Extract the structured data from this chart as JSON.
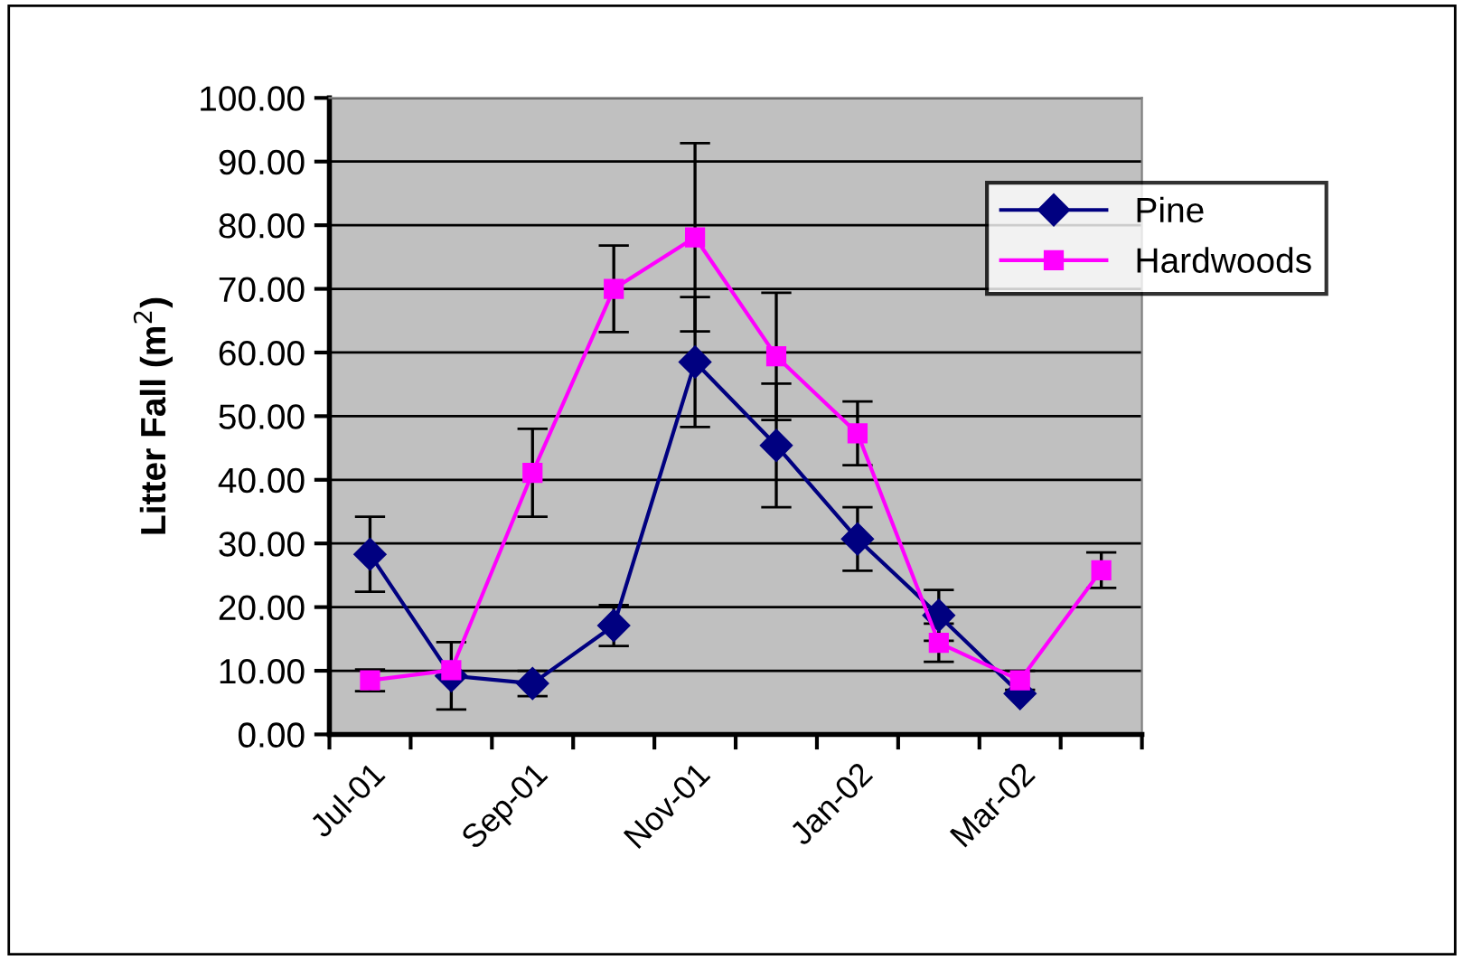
{
  "chart_data": {
    "type": "line",
    "ylabel": "Litter Fall (m$^{2}$)",
    "categories": [
      "Jul-01",
      null,
      "Sep-01",
      null,
      "Nov-01",
      null,
      "Jan-02",
      null,
      "Mar-02",
      null
    ],
    "series": [
      {
        "name": "Pine",
        "color": "#000080",
        "marker": "diamond",
        "values": [
          28.3,
          9.2,
          8.0,
          17.1,
          58.5,
          45.4,
          30.7,
          18.7,
          6.4,
          null
        ],
        "errors": [
          5.9,
          5.3,
          2.0,
          3.2,
          10.2,
          9.7,
          5.0,
          4.0,
          null,
          null
        ]
      },
      {
        "name": "Hardwoods",
        "color": "#ff00ff",
        "marker": "square",
        "values": [
          8.5,
          10.1,
          41.1,
          70.0,
          78.1,
          59.4,
          47.3,
          14.4,
          8.5,
          25.8
        ],
        "errors": [
          1.7,
          null,
          6.9,
          6.8,
          14.8,
          10.0,
          5.0,
          3.0,
          1.5,
          2.8
        ]
      }
    ],
    "ylim": [
      0,
      100
    ],
    "yticks": [
      {
        "value": 0,
        "label": "0.00"
      },
      {
        "value": 10,
        "label": "10.00"
      },
      {
        "value": 20,
        "label": "20.00"
      },
      {
        "value": 30,
        "label": "30.00"
      },
      {
        "value": 40,
        "label": "40.00"
      },
      {
        "value": 50,
        "label": "50.00"
      },
      {
        "value": 60,
        "label": "60.00"
      },
      {
        "value": 70,
        "label": "70.00"
      },
      {
        "value": 80,
        "label": "80.00"
      },
      {
        "value": 90,
        "label": "90.00"
      },
      {
        "value": 100,
        "label": "100.00"
      }
    ],
    "grid": "y",
    "legend": "top right"
  }
}
